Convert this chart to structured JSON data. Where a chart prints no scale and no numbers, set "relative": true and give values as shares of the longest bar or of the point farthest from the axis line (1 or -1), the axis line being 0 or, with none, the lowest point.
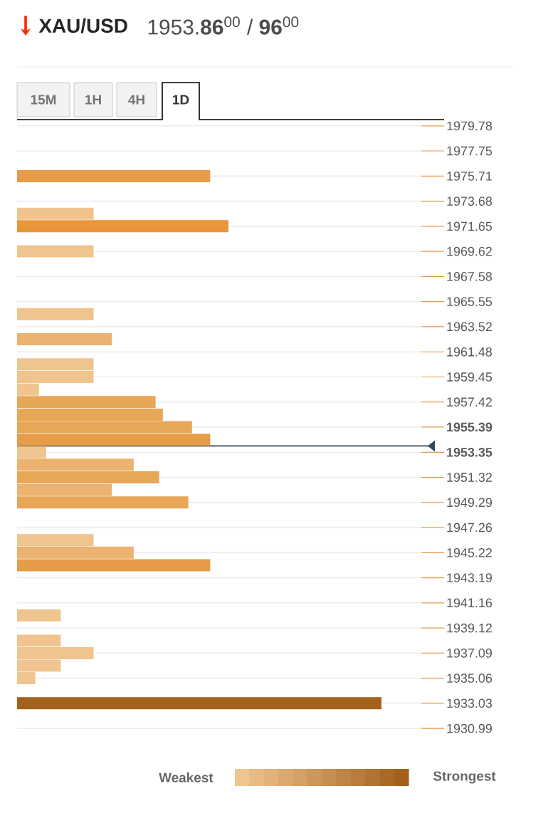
{
  "chart_data": {
    "type": "bar",
    "orientation": "horizontal",
    "relative": true,
    "title": "XAU/USD",
    "subtitle": "1953.**86**$^{00}$ / **96**$^{00}$",
    "x": [
      1975.71,
      1972.67,
      1971.65,
      1969.62,
      1964.53,
      1962.5,
      1960.47,
      1959.45,
      1958.43,
      1957.42,
      1956.4,
      1955.39,
      1954.37,
      1953.35,
      1952.34,
      1951.32,
      1950.3,
      1949.29,
      1946.24,
      1945.22,
      1944.2,
      1940.14,
      1938.1,
      1937.09,
      1936.07,
      1935.06,
      1933.03
    ],
    "values": [
      0.53,
      0.21,
      0.58,
      0.21,
      0.21,
      0.26,
      0.21,
      0.21,
      0.06,
      0.38,
      0.4,
      0.48,
      0.53,
      0.08,
      0.32,
      0.39,
      0.26,
      0.47,
      0.21,
      0.32,
      0.53,
      0.12,
      0.12,
      0.21,
      0.12,
      0.05,
      1.0
    ],
    "colors": [
      "#e69c48",
      "#f0c48f",
      "#e8963a",
      "#f0c48f",
      "#f0c48f",
      "#ecb26f",
      "#f0c48f",
      "#f0c48f",
      "#f0c48f",
      "#e8a657",
      "#e8a657",
      "#e8a657",
      "#e69c48",
      "#f0c48f",
      "#ecb26f",
      "#e8a657",
      "#ecb26f",
      "#e8a657",
      "#f0c48f",
      "#ecb26f",
      "#e69c48",
      "#f0c48f",
      "#f0c48f",
      "#f0c48f",
      "#f0c48f",
      "#f0c48f",
      "#a3611c"
    ],
    "ylim": [
      1930.99,
      1979.78
    ],
    "yticks": [
      1930.99,
      1933.03,
      1935.06,
      1937.09,
      1939.12,
      1941.16,
      1943.19,
      1945.22,
      1947.26,
      1949.29,
      1951.32,
      {
        "value": 1953.35,
        "label": "**1953.35**"
      },
      {
        "value": 1955.39,
        "label": "**1955.39**"
      },
      1957.42,
      1959.45,
      1961.48,
      1963.52,
      1965.55,
      1967.58,
      1969.62,
      1971.65,
      1973.68,
      1975.71,
      1977.75,
      1979.78
    ],
    "grid": "y",
    "ref_lines": [
      {
        "axis": "y",
        "value": 1953.86,
        "color": "#34495e"
      }
    ],
    "annotations": [
      "15M",
      "1H",
      "4H",
      "1D",
      "Weakest",
      "Strongest"
    ]
  }
}
